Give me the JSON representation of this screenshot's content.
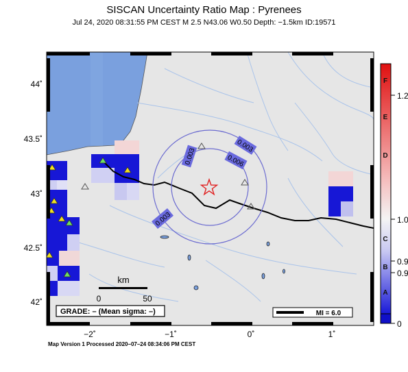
{
  "header": {
    "title": "SISCAN Uncertainty Ratio Map : Pyrenees",
    "subtitle": "Jul 24, 2020 08:31:55 PM CEST   M 2.5   N43.06 W0.50   Depth: −1.5km   ID:19571"
  },
  "axes": {
    "lat_ticks": [
      "44˚",
      "43.5˚",
      "43˚",
      "42.5˚",
      "42˚"
    ],
    "lon_ticks": [
      "−2˚",
      "−1˚",
      "0˚",
      "1˚"
    ]
  },
  "map": {
    "contour_labels": [
      "0.003",
      "0.003",
      "0.006",
      "0.003"
    ],
    "epicenter": {
      "lat": 43.06,
      "lon": -0.5
    },
    "colors": {
      "sea": "#7aa0de",
      "land": "#e6e6e6",
      "rivers": "#a9c3ea",
      "border": "#000000",
      "contour": "#6060c8",
      "epicenter": "#e02020"
    }
  },
  "scale_bar": {
    "unit": "km",
    "ticks": [
      "0",
      "50"
    ]
  },
  "grade_box": {
    "text": "GRADE: – (Mean sigma: –)"
  },
  "mi_box": {
    "text": "MI = 6.0"
  },
  "colorbar": {
    "letters": [
      "F",
      "E",
      "D",
      "C",
      "B",
      "A"
    ],
    "values": [
      "1.2",
      "1.0",
      "0.9",
      "0.9",
      "0"
    ],
    "top_color": "#e01010",
    "mid_color": "#f4f4f4",
    "bottom_color": "#1010d0"
  },
  "footer": {
    "text": "Map Version 1 Processed 2020–07–24 08:34:06 PM CEST"
  }
}
